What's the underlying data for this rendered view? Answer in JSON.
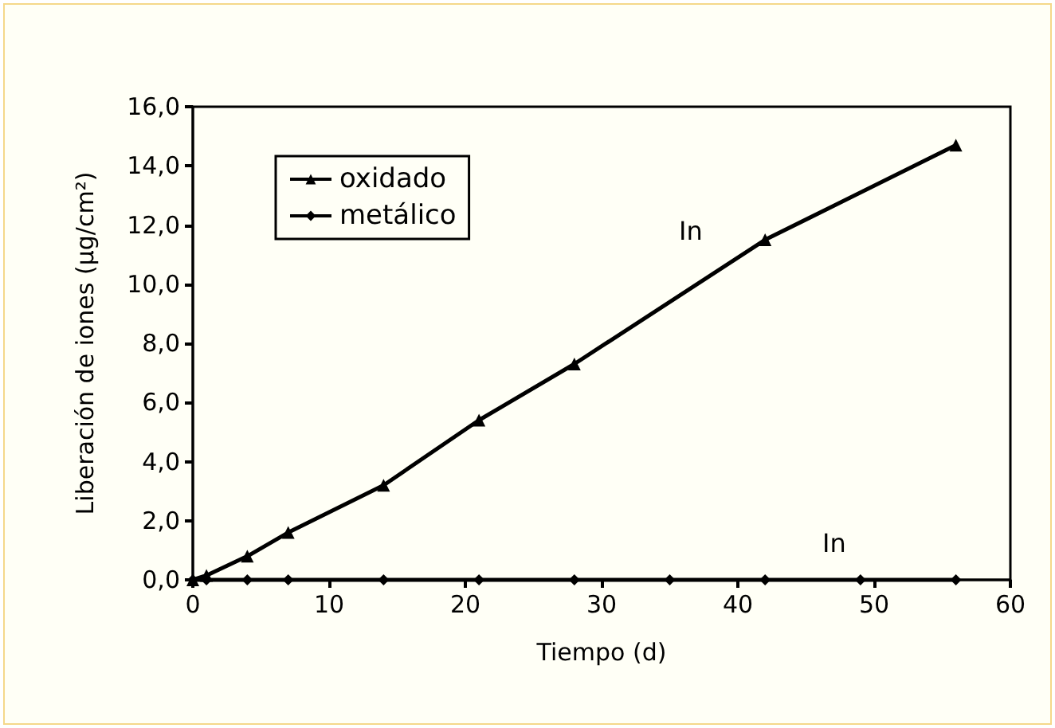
{
  "chart_data": {
    "type": "line",
    "xlabel": "Tiempo (d)",
    "ylabel": "Liberación de iones (µg/cm²)",
    "xlim": [
      0,
      60
    ],
    "xticks": [
      0,
      10,
      20,
      30,
      40,
      50,
      60
    ],
    "ylim": [
      0,
      16
    ],
    "yticks": [
      {
        "value": 0,
        "label": "0,0"
      },
      {
        "value": 2,
        "label": "2,0"
      },
      {
        "value": 4,
        "label": "4,0"
      },
      {
        "value": 6,
        "label": "6,0"
      },
      {
        "value": 8,
        "label": "8,0"
      },
      {
        "value": 10,
        "label": "10,0"
      },
      {
        "value": 12,
        "label": "12,0"
      },
      {
        "value": 14,
        "label": "14,0"
      },
      {
        "value": 16,
        "label": "16,0"
      }
    ],
    "grid": false,
    "legend": "top left",
    "line_style": "solid",
    "series": [
      {
        "name": "oxidado",
        "color": "#000000",
        "marker": "triangle",
        "x": [
          0,
          1,
          4,
          7,
          14,
          21,
          28,
          42,
          56
        ],
        "values": [
          0,
          0.15,
          0.8,
          1.6,
          3.2,
          5.4,
          7.3,
          11.5,
          14.7
        ]
      },
      {
        "name": "metálico",
        "color": "#000000",
        "marker": "diamond",
        "x": [
          0,
          1,
          4,
          7,
          14,
          21,
          28,
          35,
          42,
          49,
          56
        ],
        "values": [
          0,
          0,
          0,
          0,
          0,
          0,
          0,
          0,
          0,
          0,
          0
        ]
      }
    ],
    "annotations": [
      "In",
      "In"
    ]
  }
}
